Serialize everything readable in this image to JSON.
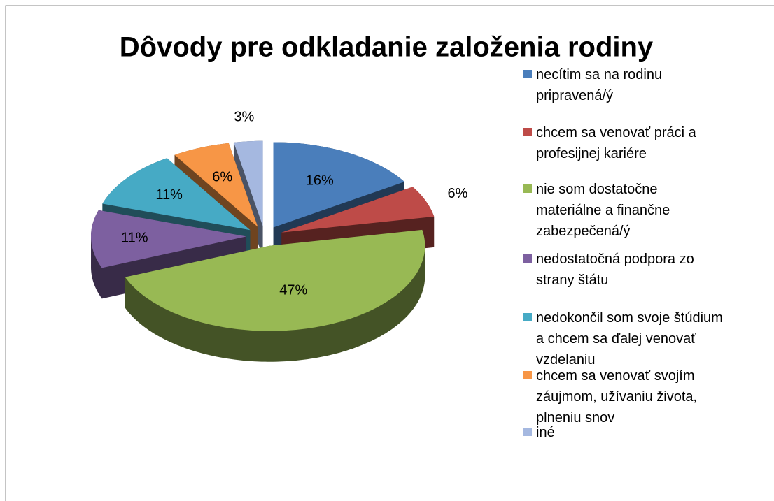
{
  "chart_data": {
    "type": "pie3d",
    "title": "Dôvody pre odkladanie založenia rodiny",
    "categories": [
      "necítim sa na rodinu pripravená/ý",
      "chcem sa venovať práci a profesijnej kariére",
      "nie som dostatočne materiálne a finančne zabezpečená/ý",
      "nedostatočná podpora zo strany štátu",
      "nedokončil som svoje štúdium a chcem sa ďalej venovať vzdelaniu",
      "chcem sa venovať svojím záujmom, užívaniu života, plneniu snov",
      "iné"
    ],
    "values": [
      16,
      6,
      47,
      11,
      11,
      6,
      3
    ],
    "value_labels": [
      "16%",
      "6%",
      "47%",
      "11%",
      "11%",
      "6%",
      "3%"
    ],
    "colors": [
      "#4a7ebb",
      "#be4b48",
      "#98b954",
      "#7d60a0",
      "#46aac5",
      "#f79646",
      "#a5b8e0"
    ],
    "legend": "right"
  }
}
